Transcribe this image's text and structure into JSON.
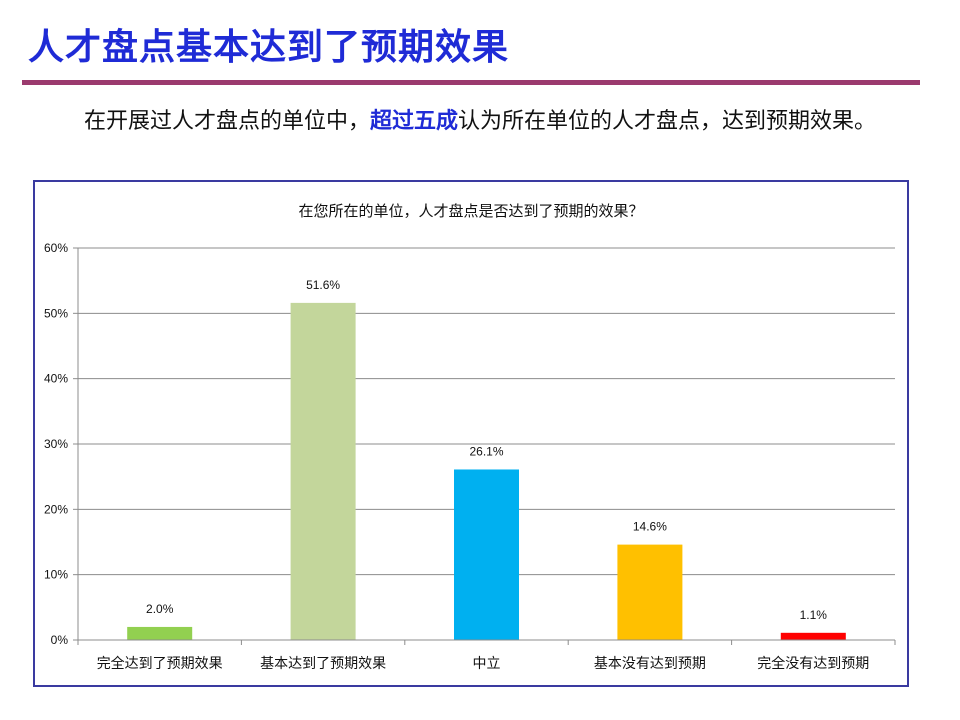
{
  "slide": {
    "title": "人才盘点基本达到了预期效果",
    "intro_before": "在开展过人才盘点的单位中，",
    "intro_highlight": "超过五成",
    "intro_after": "认为所在单位的人才盘点，达到预期效果。"
  },
  "chart_data": {
    "type": "bar",
    "title": "在您所在的单位，人才盘点是否达到了预期的效果？",
    "categories": [
      "完全达到了预期效果",
      "基本达到了预期效果",
      "中立",
      "基本没有达到预期",
      "完全没有达到预期"
    ],
    "values": [
      2.0,
      51.6,
      26.1,
      14.6,
      1.1
    ],
    "value_labels": [
      "2.0%",
      "51.6%",
      "26.1%",
      "14.6%",
      "1.1%"
    ],
    "colors": [
      "#92d050",
      "#c3d69b",
      "#00b0f0",
      "#ffc000",
      "#ff0000"
    ],
    "ylim": [
      0,
      60
    ],
    "yticks": [
      0,
      10,
      20,
      30,
      40,
      50,
      60
    ],
    "ytick_labels": [
      "0%",
      "10%",
      "20%",
      "30%",
      "40%",
      "50%",
      "60%"
    ],
    "grid": true,
    "legend": "none"
  }
}
